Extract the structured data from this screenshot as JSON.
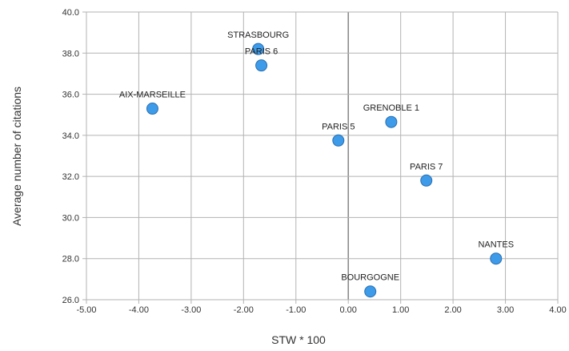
{
  "chart_data": {
    "type": "scatter",
    "xlabel": "STW * 100",
    "ylabel": "Average number of citations",
    "xlim": [
      -5.0,
      4.0
    ],
    "ylim": [
      26.0,
      40.0
    ],
    "x_ticks": [
      "-5.00",
      "-4.00",
      "-3.00",
      "-2.00",
      "-1.00",
      "0.00",
      "1.00",
      "2.00",
      "3.00",
      "4.00"
    ],
    "y_ticks": [
      "26.0",
      "28.0",
      "30.0",
      "32.0",
      "34.0",
      "36.0",
      "38.0",
      "40.0"
    ],
    "grid": true,
    "points": [
      {
        "label": "STRASBOURG",
        "x": -1.72,
        "y": 38.2
      },
      {
        "label": "PARIS 6",
        "x": -1.66,
        "y": 37.4
      },
      {
        "label": "AIX-MARSEILLE",
        "x": -3.74,
        "y": 35.3
      },
      {
        "label": "GRENOBLE 1",
        "x": 0.82,
        "y": 34.65
      },
      {
        "label": "PARIS 5",
        "x": -0.19,
        "y": 33.75
      },
      {
        "label": "PARIS 7",
        "x": 1.49,
        "y": 31.8
      },
      {
        "label": "NANTES",
        "x": 2.82,
        "y": 28.0
      },
      {
        "label": "BOURGOGNE",
        "x": 0.42,
        "y": 26.4
      }
    ],
    "colors": {
      "marker": "#3d9be9",
      "marker_edge": "#2a6fb0",
      "grid": "#b3b3b3",
      "zero_axis": "#8c8c8c"
    }
  }
}
